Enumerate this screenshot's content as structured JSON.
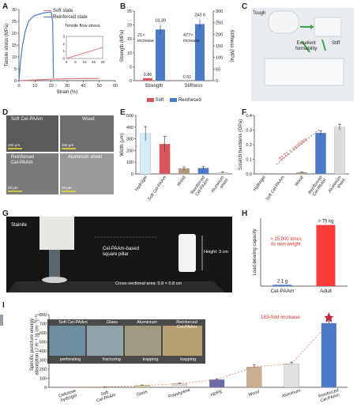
{
  "panels": {
    "A": "A",
    "B": "B",
    "C": "C",
    "D": "D",
    "E": "E",
    "F": "F",
    "G": "G",
    "H": "H",
    "I": "I"
  },
  "panelA": {
    "legend": [
      "Soft state",
      "Reinforced state"
    ],
    "inset_title": "Tensile flow stress",
    "colors": {
      "soft": "#e07a7a",
      "reinforced": "#4a7ac8"
    }
  },
  "panelB": {
    "fold_labels": [
      "21×\nincrease",
      "477×\nincrease"
    ],
    "legend": [
      "Soft",
      "Reinforced"
    ],
    "colors": {
      "soft": "#d9555a",
      "reinforced": "#4a7ac8"
    }
  },
  "panelC": {
    "labels": [
      "Tough",
      "Excellent\nformability",
      "Stiff"
    ]
  },
  "panelD": {
    "tiles": [
      "Soft Cel-PAAm",
      "Wood",
      "Reinforced\nCel-PAAm",
      "Aluminum sheet"
    ],
    "scale_bars": [
      "100 μm",
      "100 μm",
      "20 μm",
      "20 μm"
    ]
  },
  "panelG": {
    "labels": [
      "Stainite",
      "Cel-PAAm-based\nsquare pillar",
      "Height: 3 cm",
      "Cross-sectional area: 0.8 × 0.8 cm"
    ]
  },
  "panelI": {
    "photo_labels_top": [
      "Soft Cel-PAAm",
      "Glass",
      "Aluminium",
      "Reinforced\nCel-PAAm"
    ],
    "photo_labels_bottom": [
      "perforating",
      "fracturing",
      "trapping",
      "trapping"
    ],
    "annotation": "183-fold increase"
  },
  "chart_data": [
    {
      "id": "A",
      "type": "line",
      "xlabel": "Strain (%)",
      "ylabel": "Tensile stress (MPa)",
      "xlim": [
        0,
        60
      ],
      "ylim": [
        0,
        30
      ],
      "xticks": [
        0,
        10,
        20,
        30,
        40,
        50,
        60
      ],
      "yticks": [
        0,
        5,
        10,
        15,
        20,
        25,
        30
      ],
      "series": [
        {
          "name": "Soft state",
          "x": [
            0,
            10,
            20,
            30,
            40,
            50
          ],
          "y": [
            0,
            0.3,
            0.6,
            0.8,
            0.9,
            0.9
          ]
        },
        {
          "name": "Reinforced state",
          "x": [
            0,
            1,
            2,
            4,
            6,
            8,
            10,
            15,
            20,
            21,
            21.5
          ],
          "y": [
            0,
            8,
            14,
            21,
            25,
            26.5,
            27.5,
            28.5,
            29,
            25,
            1
          ]
        }
      ],
      "inset": {
        "xlim": [
          0,
          20
        ],
        "ylim": [
          0,
          3
        ],
        "xticks": [
          0,
          5,
          10,
          15,
          20
        ],
        "yticks": [
          0,
          1,
          2,
          3
        ]
      }
    },
    {
      "id": "B",
      "type": "bar",
      "categories": [
        "Strength",
        "Stiffness"
      ],
      "ylabel": "Strength (MPa)",
      "y2label": "Stiffness (MPa)",
      "ylim": [
        0,
        25
      ],
      "y2lim": [
        0,
        300
      ],
      "yticks": [
        0,
        5,
        10,
        15,
        20,
        25
      ],
      "y2ticks": [
        0,
        50,
        100,
        150,
        200,
        250,
        300
      ],
      "series": [
        {
          "name": "Soft",
          "values": [
            0.86,
            0.51
          ]
        },
        {
          "name": "Reinforced",
          "values": [
            18.39,
            243.6
          ]
        }
      ],
      "value_labels": [
        "0.86",
        "18.39",
        "0.51",
        "243.6"
      ]
    },
    {
      "id": "E",
      "type": "bar",
      "categories": [
        "Hydrogel",
        "Soft Cel-PAAm",
        "Wood",
        "Reinforced\nCel-PAAm",
        "Aluminum\nsheet"
      ],
      "ylabel": "Width (μm)",
      "ylim": [
        0,
        500
      ],
      "yticks": [
        0,
        100,
        200,
        300,
        400,
        500
      ],
      "values": [
        345,
        255,
        45,
        50,
        12
      ],
      "errors": [
        60,
        65,
        15,
        12,
        5
      ],
      "colors": [
        "#d6ecf7",
        "#d9555a",
        "#b5977a",
        "#4a7ac8",
        "#dcdcdc"
      ]
    },
    {
      "id": "F",
      "type": "bar",
      "categories": [
        "Hydrogel",
        "Soft Cel-PAAm",
        "Wood",
        "Reinforced\nCel-PAAm",
        "Aluminum\nsheet"
      ],
      "ylabel": "Scratch hardness (GPa)",
      "ylim": [
        0,
        0.4
      ],
      "yticks": [
        0.0,
        0.1,
        0.2,
        0.3,
        0.4
      ],
      "values": [
        0,
        0.0,
        0.01,
        0.28,
        0.32
      ],
      "errors": [
        0,
        0,
        0.003,
        0.015,
        0.02
      ],
      "colors": [
        "#ffffff",
        "#f6d86b",
        "#b5977a",
        "#4a7ac8",
        "#dcdcdc"
      ],
      "annotation": "30.21 × increase"
    },
    {
      "id": "H",
      "type": "bar",
      "ylabel": "Load-bearing capacity",
      "categories": [
        "Cel-PAAm",
        "Adult"
      ],
      "values": [
        2.1,
        75
      ],
      "value_labels": [
        "2.1 g",
        "> 75 kg"
      ],
      "colors": [
        "#4a7ac8",
        "#ff3c3c"
      ],
      "annotation": "> 35,000 times\nits own weight"
    },
    {
      "id": "I",
      "type": "bar",
      "ylabel": "Specific puncture energy\nabsorption (J m⁻¹ (g cm⁻³)⁻¹)",
      "ylim": [
        0,
        800
      ],
      "yticks": [
        0,
        100,
        200,
        300,
        400,
        500,
        600,
        700,
        800
      ],
      "categories": [
        "Cellulose\nhydrogel",
        "Soft\nCel-PAAm",
        "Glass",
        "Polystyrene",
        "HDPE",
        "Wood",
        "Aluminum",
        "Reinforced\nCel-PAAm"
      ],
      "values": [
        0,
        4,
        20,
        40,
        85,
        225,
        260,
        705
      ],
      "errors": [
        0,
        2,
        6,
        6,
        10,
        25,
        18,
        25
      ],
      "colors": [
        "#ffffff",
        "#d9555a",
        "#c9c9a0",
        "#dcdcdc",
        "#6a6aa8",
        "#c8b090",
        "#e0e0e0",
        "#4a7ac8"
      ]
    }
  ]
}
